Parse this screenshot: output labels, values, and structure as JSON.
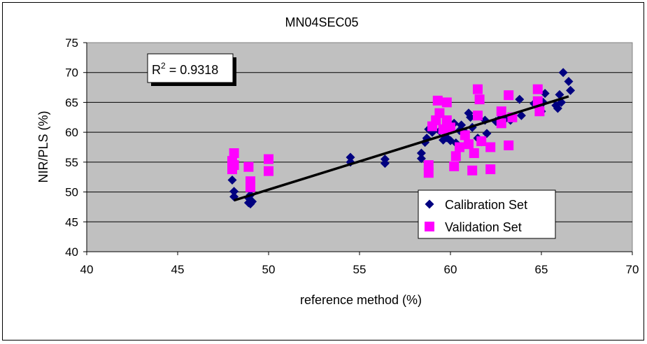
{
  "chart_data": {
    "type": "scatter",
    "title": "MN04SEC05",
    "xlabel": "reference method (%)",
    "ylabel": "NIR/PLS (%)",
    "xlim": [
      40,
      70
    ],
    "ylim": [
      40,
      75
    ],
    "xticks": [
      40,
      45,
      50,
      55,
      60,
      65,
      70
    ],
    "yticks": [
      40,
      45,
      50,
      55,
      60,
      65,
      70,
      75
    ],
    "xtick_labels": [
      "40",
      "45",
      "50",
      "55",
      "60",
      "65",
      "70"
    ],
    "ytick_labels": [
      "40",
      "45",
      "50",
      "55",
      "60",
      "65",
      "70",
      "75"
    ],
    "grid": "horizontal",
    "plot_background": "#c0c0c0",
    "legend_position": "bottom-right",
    "annotation": {
      "label": "R",
      "superscript": "2",
      "value_text": " = 0.9318"
    },
    "trendline": {
      "name": "linear fit",
      "x": [
        48.1,
        66.5
      ],
      "y": [
        48.6,
        66.0
      ],
      "color": "#000000"
    },
    "series": [
      {
        "name": "Calibration Set",
        "marker": "diamond",
        "color": "#000080",
        "x": [
          48.0,
          48.1,
          48.1,
          48.9,
          48.9,
          49.0,
          49.0,
          49.1,
          54.5,
          54.5,
          56.4,
          56.4,
          58.4,
          58.4,
          58.6,
          58.7,
          58.8,
          59.0,
          59.4,
          59.6,
          59.8,
          60.0,
          60.2,
          60.3,
          60.5,
          60.6,
          60.8,
          61.0,
          61.1,
          61.2,
          61.5,
          61.7,
          61.9,
          62.0,
          62.5,
          62.8,
          63.0,
          63.3,
          63.8,
          63.9,
          64.6,
          64.8,
          65.0,
          65.1,
          65.2,
          65.8,
          65.9,
          66.0,
          66.1,
          66.2,
          66.5,
          66.6
        ],
        "y": [
          52.0,
          49.2,
          50.1,
          48.2,
          49.0,
          49.5,
          48.0,
          48.4,
          55.0,
          55.8,
          54.8,
          55.5,
          55.6,
          56.5,
          58.3,
          59.0,
          60.5,
          60.0,
          60.2,
          58.7,
          59.1,
          58.6,
          61.5,
          58.2,
          60.3,
          61.2,
          60.0,
          63.2,
          62.5,
          60.8,
          59.0,
          58.4,
          62.0,
          59.8,
          61.8,
          62.5,
          62.2,
          62.0,
          65.5,
          62.8,
          64.8,
          64.2,
          63.5,
          65.0,
          66.5,
          64.5,
          64.0,
          66.3,
          65.0,
          70.0,
          68.5,
          67.0
        ]
      },
      {
        "name": "Validation Set",
        "marker": "square",
        "color": "#ff00ff",
        "x": [
          48.0,
          48.0,
          48.1,
          48.1,
          48.9,
          49.0,
          49.0,
          50.0,
          50.0,
          58.8,
          58.8,
          59.0,
          59.2,
          59.3,
          59.4,
          59.6,
          59.8,
          59.8,
          60.0,
          60.2,
          60.3,
          60.5,
          60.8,
          61.0,
          61.2,
          61.3,
          61.5,
          61.5,
          61.6,
          61.7,
          62.2,
          62.2,
          62.8,
          62.8,
          63.2,
          63.2,
          63.4,
          64.8,
          64.8,
          64.9
        ],
        "y": [
          53.8,
          55.2,
          56.5,
          54.5,
          54.2,
          51.8,
          50.8,
          55.5,
          53.5,
          54.5,
          53.2,
          61.0,
          62.0,
          65.3,
          63.2,
          60.5,
          62.0,
          65.0,
          60.8,
          54.3,
          56.0,
          57.5,
          59.5,
          58.0,
          53.6,
          56.5,
          67.2,
          62.8,
          65.5,
          58.5,
          57.5,
          53.8,
          63.5,
          61.5,
          66.2,
          57.8,
          62.5,
          67.2,
          65.2,
          63.5
        ]
      }
    ]
  }
}
